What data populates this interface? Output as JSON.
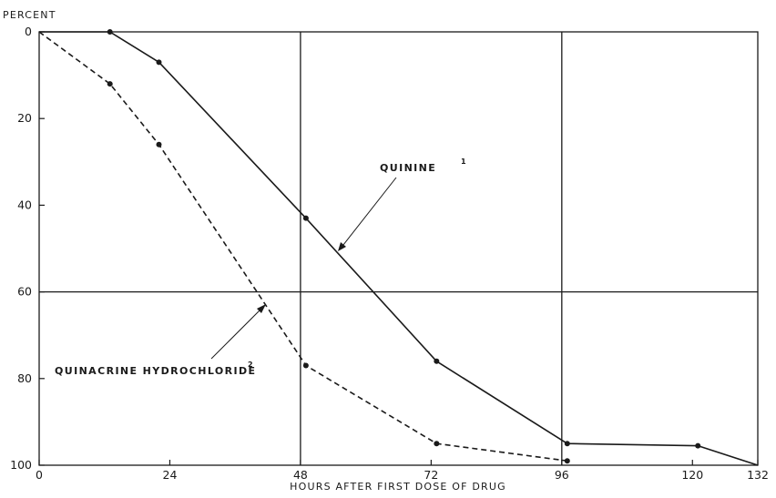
{
  "chart_data": {
    "type": "line",
    "ylabel": "PERCENT",
    "xlabel": "HOURS AFTER FIRST DOSE OF DRUG",
    "xlim": [
      0,
      132
    ],
    "ylim": [
      0,
      100
    ],
    "y_inverted": true,
    "x_ticks": [
      0,
      24,
      48,
      72,
      96,
      120,
      132
    ],
    "y_ticks": [
      0,
      20,
      40,
      60,
      80,
      100
    ],
    "gridlines_x": [
      48,
      96
    ],
    "gridlines_y": [
      60
    ],
    "series": [
      {
        "name": "QUININE",
        "footnote": "1",
        "style": "solid",
        "x": [
          0,
          13,
          22,
          49,
          73,
          97,
          121,
          132
        ],
        "y": [
          0,
          0,
          7,
          43,
          76,
          95,
          95.5,
          100
        ]
      },
      {
        "name": "QUINACRINE HYDROCHLORIDE",
        "footnote": "2",
        "style": "dashed",
        "x": [
          0,
          13,
          22,
          49,
          73,
          97
        ],
        "y": [
          0,
          12,
          26,
          77,
          95,
          99
        ]
      }
    ],
    "colors": {
      "line": "#1a1a1a",
      "grid": "#1a1a1a"
    }
  }
}
